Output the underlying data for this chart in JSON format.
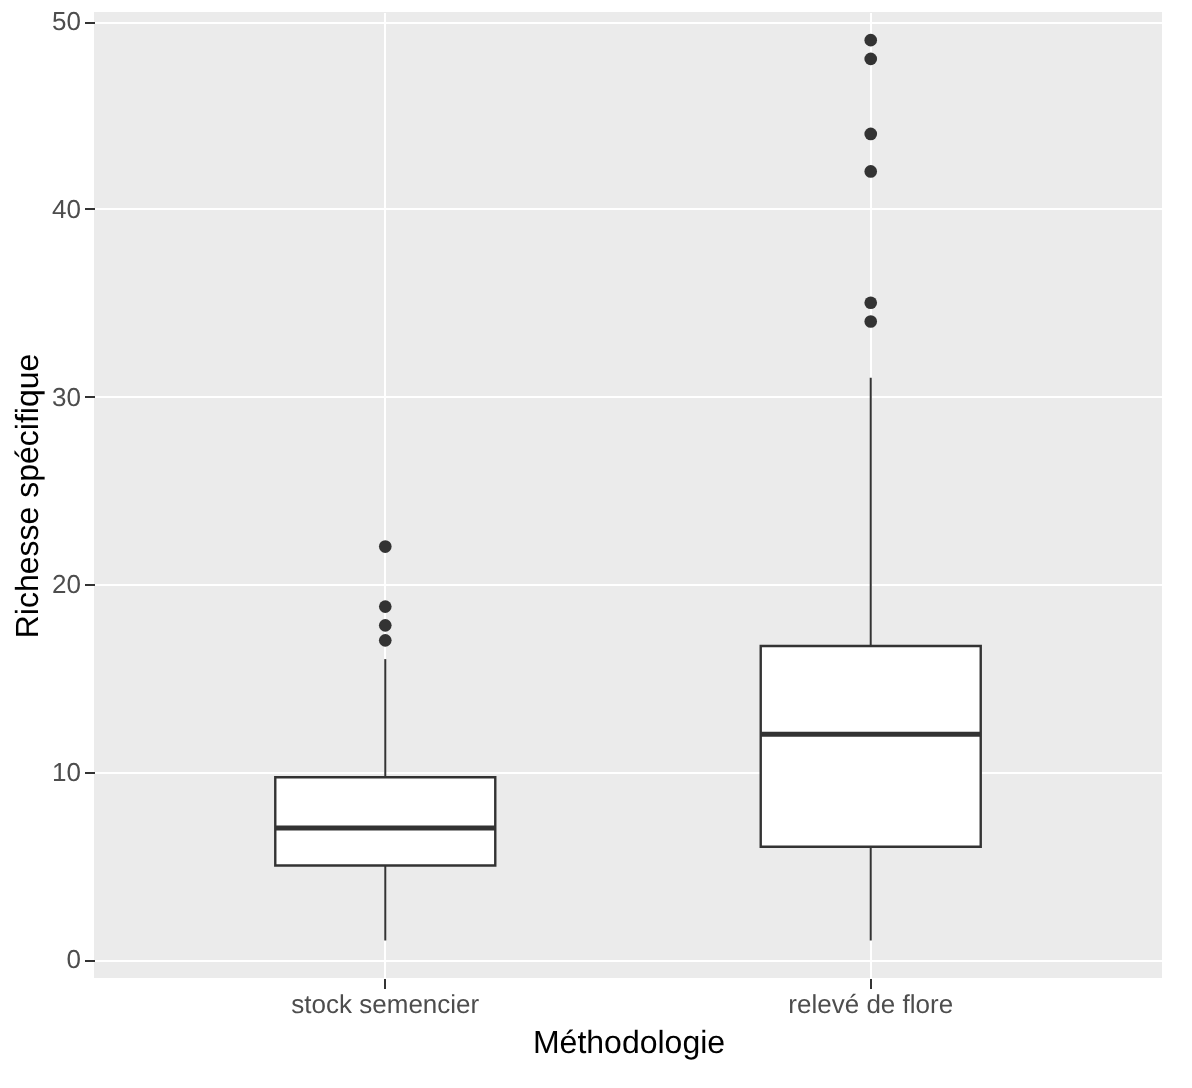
{
  "chart_data": {
    "type": "box",
    "xlabel": "Méthodologie",
    "ylabel": "Richesse spécifique",
    "categories": [
      "stock semencier",
      "relevé de flore"
    ],
    "boxes": [
      {
        "low": 1,
        "q1": 5,
        "median": 7,
        "q3": 9.7,
        "high": 16,
        "outliers": [
          17,
          17.8,
          18.8,
          22
        ]
      },
      {
        "low": 1,
        "q1": 6,
        "median": 12,
        "q3": 16.7,
        "high": 31,
        "outliers": [
          34,
          35,
          42,
          44,
          48,
          49
        ]
      }
    ],
    "ylim": [
      -1,
      50.5
    ],
    "yticks": [
      0,
      10,
      20,
      30,
      40,
      50
    ],
    "grid": true
  }
}
